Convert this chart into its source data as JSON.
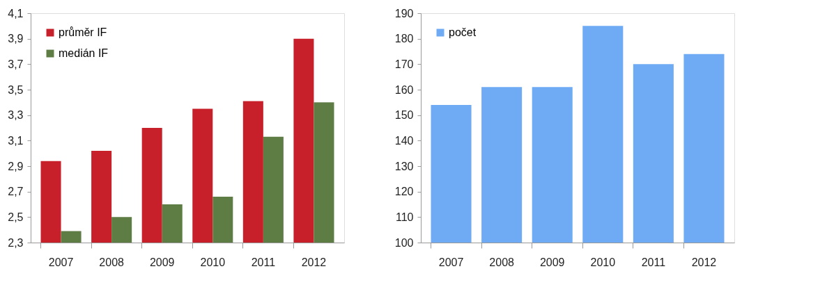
{
  "chart_data": [
    {
      "type": "bar",
      "categories": [
        "2007",
        "2008",
        "2009",
        "2010",
        "2011",
        "2012"
      ],
      "series": [
        {
          "name": "průměr IF",
          "color": "#c8202a",
          "values": [
            2.94,
            3.02,
            3.2,
            3.35,
            3.41,
            3.9
          ]
        },
        {
          "name": "medián IF",
          "color": "#5e7d45",
          "values": [
            2.39,
            2.5,
            2.6,
            2.66,
            3.13,
            3.4
          ]
        }
      ],
      "ylim": [
        2.3,
        4.1
      ],
      "yticks": [
        {
          "value": 2.3,
          "label": "2,3"
        },
        {
          "value": 2.5,
          "label": "2,5"
        },
        {
          "value": 2.7,
          "label": "2,7"
        },
        {
          "value": 2.9,
          "label": "2,9"
        },
        {
          "value": 3.1,
          "label": "3,1"
        },
        {
          "value": 3.3,
          "label": "3,3"
        },
        {
          "value": 3.5,
          "label": "3,5"
        },
        {
          "value": 3.7,
          "label": "3,7"
        },
        {
          "value": 3.9,
          "label": "3,9"
        },
        {
          "value": 4.1,
          "label": "4,1"
        }
      ],
      "legend": "top left"
    },
    {
      "type": "bar",
      "categories": [
        "2007",
        "2008",
        "2009",
        "2010",
        "2011",
        "2012"
      ],
      "series": [
        {
          "name": "počet",
          "color": "#6fabf5",
          "values": [
            154,
            161,
            161,
            185,
            170,
            174
          ]
        }
      ],
      "ylim": [
        100,
        190
      ],
      "yticks": [
        100,
        110,
        120,
        130,
        140,
        150,
        160,
        170,
        180,
        190
      ],
      "legend": "top left"
    }
  ]
}
